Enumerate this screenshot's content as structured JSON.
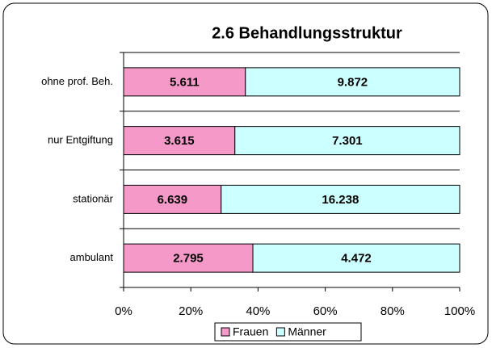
{
  "chart_data": {
    "type": "bar",
    "orientation": "horizontal",
    "stacking": "percent",
    "title": "2.6  Behandlungsstruktur",
    "categories": [
      "ohne prof. Beh.",
      "nur Entgiftung",
      "stationär",
      "ambulant"
    ],
    "series": [
      {
        "name": "Frauen",
        "color": "#f59ac8",
        "values": [
          5611,
          3615,
          6639,
          2795
        ],
        "value_labels": [
          "5.611",
          "3.615",
          "6.639",
          "2.795"
        ]
      },
      {
        "name": "Männer",
        "color": "#ccffff",
        "values": [
          9872,
          7301,
          16238,
          4472
        ],
        "value_labels": [
          "9.872",
          "7.301",
          "16.238",
          "4.472"
        ]
      }
    ],
    "xlim": [
      0,
      100
    ],
    "xticks": [
      {
        "value": 0,
        "label": "0%"
      },
      {
        "value": 20,
        "label": "20%"
      },
      {
        "value": 40,
        "label": "40%"
      },
      {
        "value": 60,
        "label": "60%"
      },
      {
        "value": 80,
        "label": "80%"
      },
      {
        "value": 100,
        "label": "100%"
      }
    ],
    "legend": "bottom"
  }
}
